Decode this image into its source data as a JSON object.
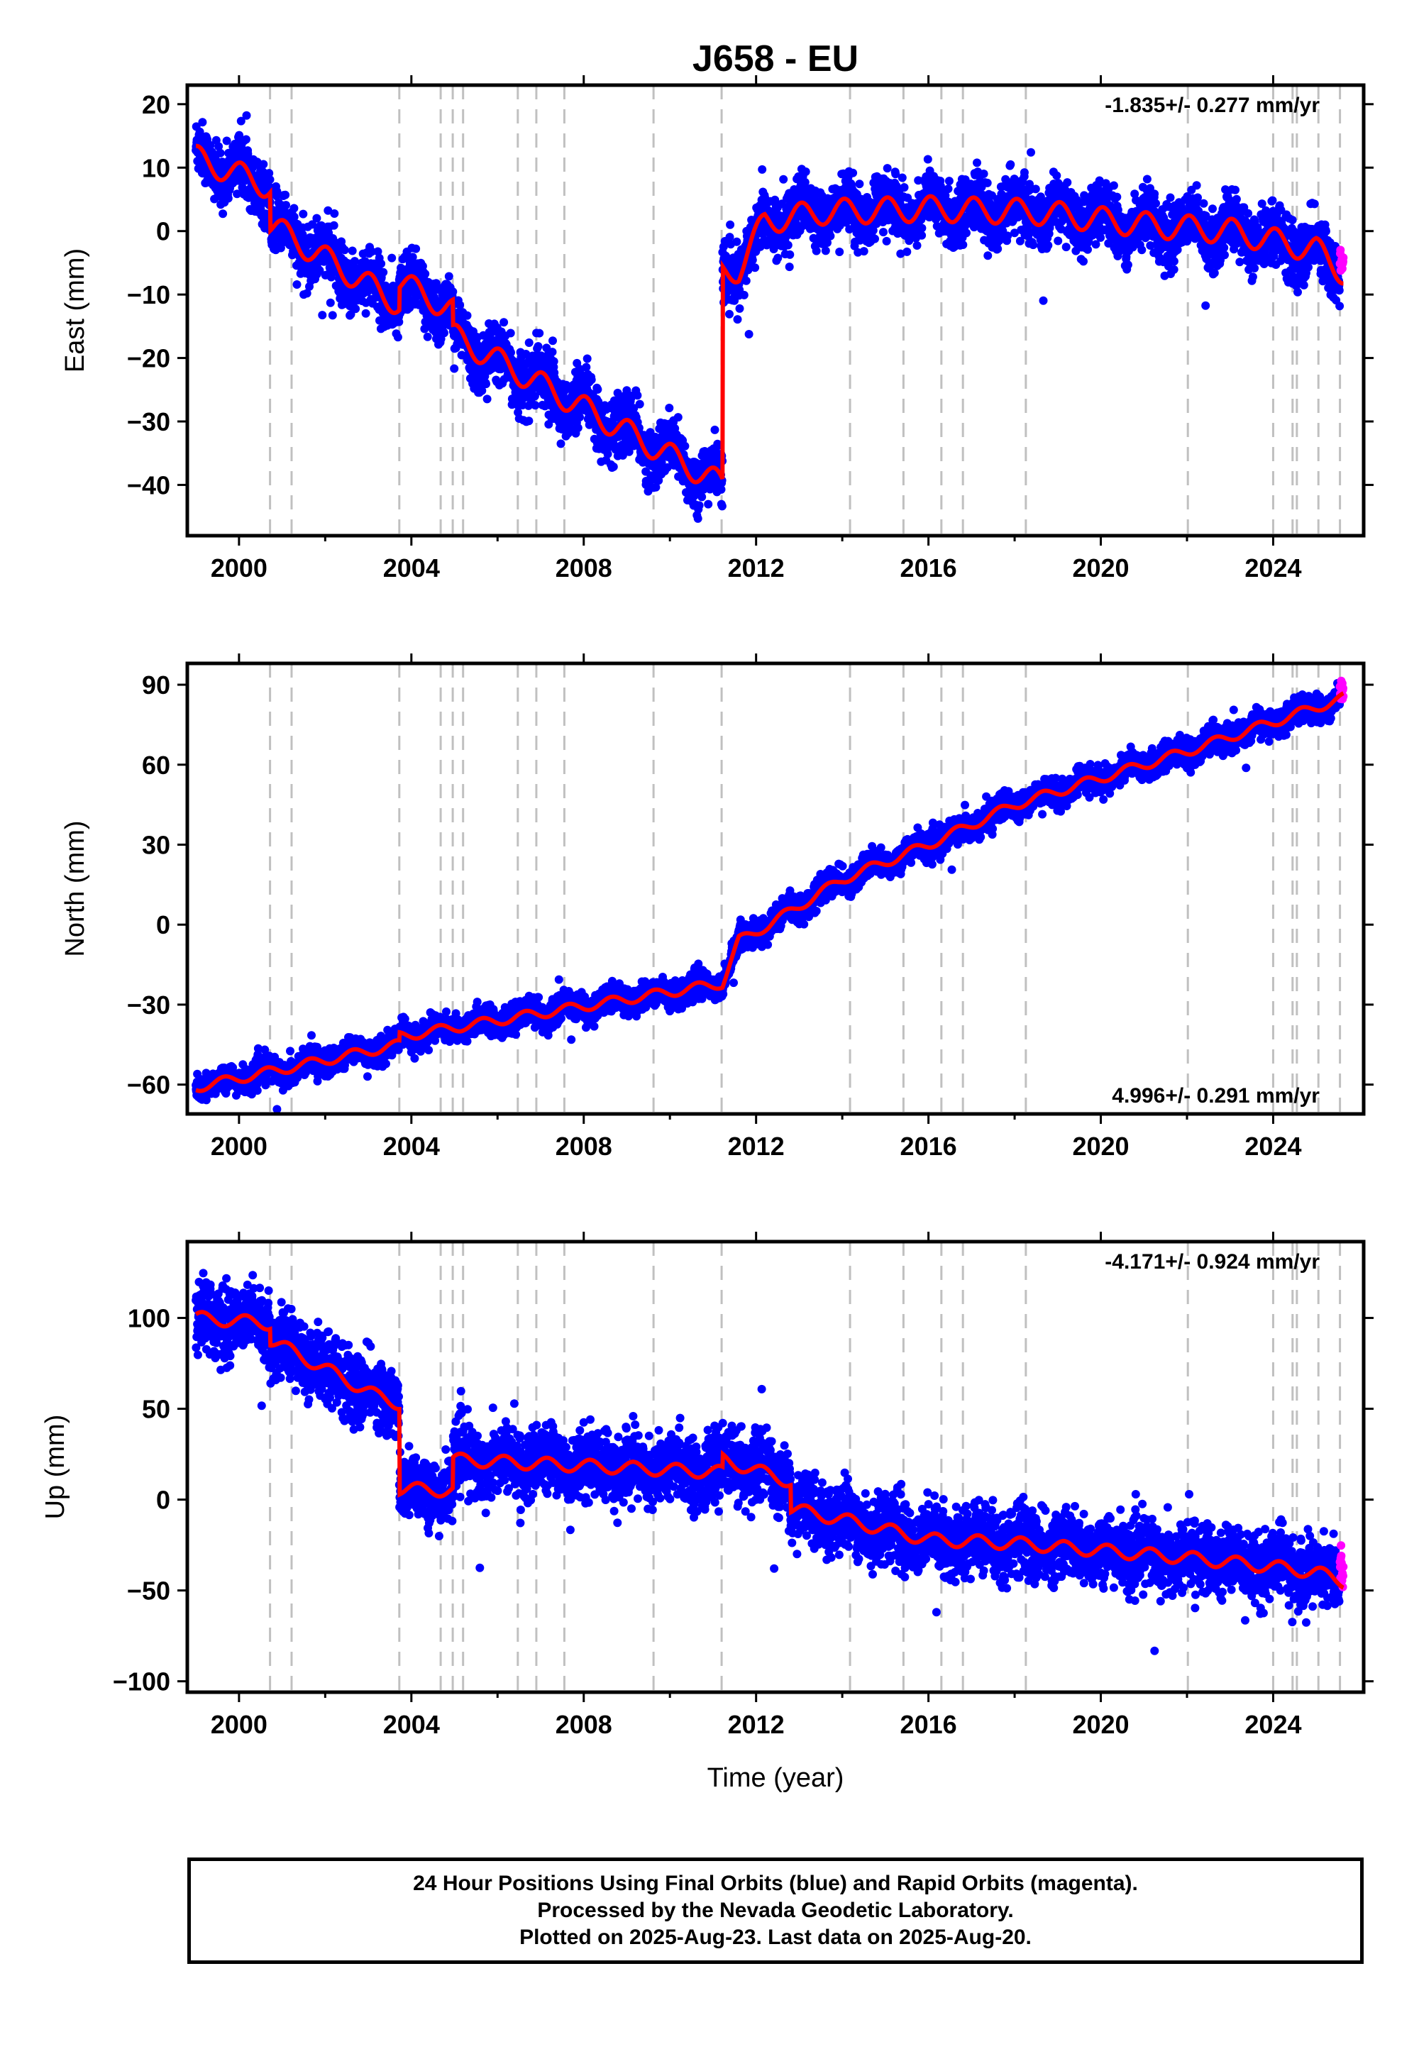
{
  "title": "J658 - EU",
  "xlabel": "Time (year)",
  "footer": {
    "line1": "24 Hour Positions Using Final Orbits (blue) and Rapid Orbits (magenta).",
    "line2": "Processed by the Nevada Geodetic Laboratory.",
    "line3": "Plotted on 2025-Aug-23. Last data on 2025-Aug-20."
  },
  "colors": {
    "final_points": "#0000ff",
    "rapid_points": "#ff00ff",
    "model_line": "#ff0000",
    "event_lines": "#c0c0c0"
  },
  "chart_data": [
    {
      "type": "scatter",
      "name": "East",
      "ylabel": "East (mm)",
      "rate_text": "-1.835+/- 0.277 mm/yr",
      "xlim": [
        1998.8,
        2026.1
      ],
      "ylim": [
        -48,
        23
      ],
      "xticks": [
        2000,
        2004,
        2008,
        2012,
        2016,
        2020,
        2024
      ],
      "yticks": [
        20,
        10,
        0,
        -10,
        -20,
        -30,
        -40
      ],
      "ytick_labels": [
        "20",
        "10",
        "0",
        "−10",
        "−20",
        "−30",
        "−40"
      ],
      "model": {
        "t0": 1999.0,
        "t1": 2011.22,
        "a": 11.5,
        "b": -4.1,
        "amp": 2.0,
        "phase": 0.2,
        "jumps": [
          [
            2000.72,
            -3.0
          ],
          [
            2003.72,
            1.5
          ],
          [
            2004.96,
            -2.0
          ]
        ],
        "post_seg": {
          "t0": 2011.22,
          "t1": 2025.63,
          "start": -6.5,
          "end": -6.5
        },
        "post_knots": [
          [
            2011.22,
            -6.5
          ],
          [
            2011.6,
            -6.0
          ],
          [
            2012.2,
            1.5
          ],
          [
            2013.5,
            3.0
          ],
          [
            2016.0,
            3.5
          ],
          [
            2018.5,
            3.0
          ],
          [
            2021.0,
            1.0
          ],
          [
            2023.0,
            0.0
          ],
          [
            2025.0,
            -3.0
          ],
          [
            2025.63,
            -6.5
          ]
        ],
        "pre_knots": [
          [
            1999.0,
            11.5
          ],
          [
            2000.72,
            7.0
          ],
          [
            2000.72,
            1.0
          ],
          [
            2003.72,
            -11.5
          ],
          [
            2003.72,
            -8.0
          ],
          [
            2004.96,
            -12.5
          ],
          [
            2004.96,
            -16.5
          ],
          [
            2011.22,
            -40.0
          ]
        ]
      },
      "scatter_sd": 2.2
    },
    {
      "type": "scatter",
      "name": "North",
      "ylabel": "North (mm)",
      "rate_text": "4.996+/- 0.291 mm/yr",
      "xlim": [
        1998.8,
        2026.1
      ],
      "ylim": [
        -71,
        98
      ],
      "xticks": [
        2000,
        2004,
        2008,
        2012,
        2016,
        2020,
        2024
      ],
      "yticks": [
        90,
        60,
        30,
        0,
        -30,
        -60
      ],
      "ytick_labels": [
        "90",
        "60",
        "30",
        "0",
        "−30",
        "−60"
      ],
      "model": {
        "amp": 1.8,
        "phase": 0.6,
        "pre_knots": [
          [
            1999.0,
            -61.0
          ],
          [
            2003.72,
            -45.0
          ],
          [
            2003.72,
            -42.0
          ],
          [
            2011.22,
            -22.0
          ]
        ],
        "post_knots": [
          [
            2011.22,
            -22.0
          ],
          [
            2011.6,
            -6.0
          ],
          [
            2012.3,
            0.0
          ],
          [
            2014.0,
            17.0
          ],
          [
            2016.0,
            30.0
          ],
          [
            2018.0,
            45.0
          ],
          [
            2020.0,
            55.0
          ],
          [
            2022.0,
            65.0
          ],
          [
            2024.0,
            76.0
          ],
          [
            2025.63,
            85.0
          ]
        ]
      },
      "scatter_sd": 2.4
    },
    {
      "type": "scatter",
      "name": "Up",
      "ylabel": "Up (mm)",
      "rate_text": "-4.171+/- 0.924 mm/yr",
      "xlim": [
        1998.8,
        2026.1
      ],
      "ylim": [
        -106,
        142
      ],
      "xticks": [
        2000,
        2004,
        2008,
        2012,
        2016,
        2020,
        2024
      ],
      "yticks": [
        100,
        50,
        0,
        -50,
        -100
      ],
      "ytick_labels": [
        "100",
        "50",
        "0",
        "−50",
        "−100"
      ],
      "model": {
        "amp": 3.5,
        "phase": 0.1,
        "pre_knots": [
          [
            1999.0,
            100.0
          ],
          [
            2000.72,
            97.0
          ],
          [
            2000.72,
            88.0
          ],
          [
            2003.2,
            57.0
          ],
          [
            2003.72,
            53.0
          ],
          [
            2003.72,
            6.0
          ],
          [
            2004.96,
            5.0
          ],
          [
            2004.96,
            22.0
          ],
          [
            2011.22,
            15.0
          ],
          [
            2011.22,
            22.0
          ],
          [
            2012.8,
            10.0
          ]
        ],
        "post_knots": [
          [
            2012.8,
            10.0
          ],
          [
            2012.8,
            -5.0
          ],
          [
            2014.2,
            -12.0
          ],
          [
            2016.0,
            -22.0
          ],
          [
            2018.0,
            -24.0
          ],
          [
            2020.0,
            -28.0
          ],
          [
            2022.0,
            -32.0
          ],
          [
            2024.0,
            -37.0
          ],
          [
            2025.0,
            -40.0
          ],
          [
            2025.63,
            -45.0
          ]
        ]
      },
      "scatter_sd": 9.0
    }
  ],
  "event_lines": [
    2000.72,
    2001.22,
    2003.72,
    2004.68,
    2004.96,
    2005.2,
    2006.47,
    2006.9,
    2007.55,
    2009.62,
    2011.2,
    2014.18,
    2015.42,
    2016.3,
    2016.8,
    2018.26,
    2022.02,
    2024.0,
    2024.45,
    2024.55,
    2025.05,
    2025.55
  ],
  "rapid_range": [
    2025.55,
    2025.63
  ]
}
